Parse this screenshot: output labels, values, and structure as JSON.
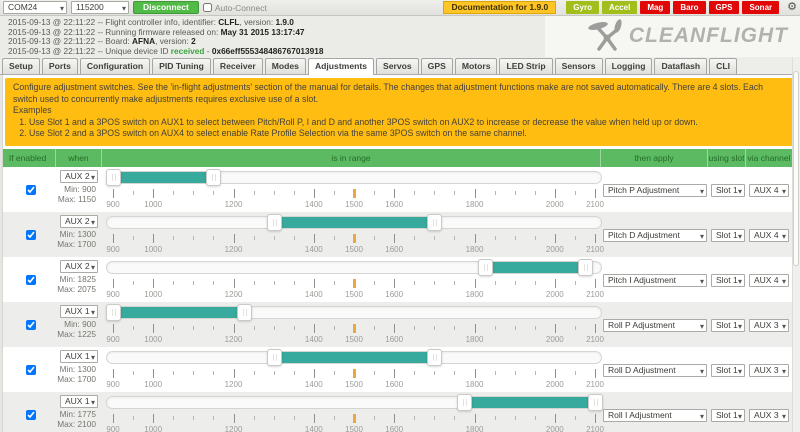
{
  "toolbar": {
    "port": "COM24",
    "baud": "115200",
    "disconnect_label": "Disconnect",
    "autoconnect_label": "Auto-Connect",
    "documentation_label": "Documentation for 1.9.0",
    "sensors": [
      {
        "label": "Gyro",
        "active": true
      },
      {
        "label": "Accel",
        "active": true
      },
      {
        "label": "Mag",
        "active": false
      },
      {
        "label": "Baro",
        "active": false
      },
      {
        "label": "GPS",
        "active": false
      },
      {
        "label": "Sonar",
        "active": false
      }
    ]
  },
  "log_lines": [
    {
      "t1": "2015-09-13 @ 22:11:22 -- Flight controller info, identifier: ",
      "b1": "CLFL",
      "t2": ", version: ",
      "b2": "1.9.0"
    },
    {
      "t1": "2015-09-13 @ 22:11:22 -- Running firmware released on: ",
      "b1": "May 31 2015 13:17:47",
      "t2": "",
      "b2": ""
    },
    {
      "t1": "2015-09-13 @ 22:11:22 -- Board: ",
      "b1": "AFNA",
      "t2": ", version: ",
      "b2": "2"
    },
    {
      "t1": "2015-09-13 @ 22:11:22 -- Unique device ID ",
      "b1": "received",
      "t2": " - ",
      "b2": "0x66eff555348486767013918"
    }
  ],
  "logo_text": "CLEANFLIGHT",
  "tabs": [
    "Setup",
    "Ports",
    "Configuration",
    "PID Tuning",
    "Receiver",
    "Modes",
    "Adjustments",
    "Servos",
    "GPS",
    "Motors",
    "LED Strip",
    "Sensors",
    "Logging",
    "Dataflash",
    "CLI"
  ],
  "active_tab": "Adjustments",
  "note": {
    "p1": "Configure adjustment switches. See the 'in-flight adjustments' section of the manual for details. The changes that adjustment functions make are not saved automatically. There are 4 slots. Each switch used to concurrently make adjustments requires exclusive use of a slot.",
    "examples_label": "Examples",
    "examples": [
      "Use Slot 1 and a 3POS switch on AUX1 to select between Pitch/Roll P, I and D and another 3POS switch on AUX2 to increase or decrease the value when held up or down.",
      "Use Slot 2 and a 3POS switch on AUX4 to select enable Rate Profile Selection via the same 3POS switch on the same channel."
    ]
  },
  "table": {
    "headers": {
      "enabled": "If enabled",
      "channel": "when channel",
      "range": "is in range",
      "apply": "then apply",
      "slot": "using slot",
      "via": "via channel"
    },
    "min_prefix": "Min:",
    "max_prefix": "Max:",
    "slider": {
      "min": 900,
      "max": 2100,
      "minor_step": 50,
      "labeled": [
        900,
        1000,
        1200,
        1400,
        1500,
        1600,
        1800,
        2000,
        2100
      ],
      "highlight": 1500
    },
    "rows": [
      {
        "enabled": true,
        "channel": "AUX 2",
        "min": 900,
        "max": 1150,
        "apply": "Pitch P Adjustment",
        "slot": "Slot 1",
        "via": "AUX 4"
      },
      {
        "enabled": true,
        "channel": "AUX 2",
        "min": 1300,
        "max": 1700,
        "apply": "Pitch D Adjustment",
        "slot": "Slot 1",
        "via": "AUX 4"
      },
      {
        "enabled": true,
        "channel": "AUX 2",
        "min": 1825,
        "max": 2075,
        "apply": "Pitch I Adjustment",
        "slot": "Slot 1",
        "via": "AUX 4"
      },
      {
        "enabled": true,
        "channel": "AUX 1",
        "min": 900,
        "max": 1225,
        "apply": "Roll P Adjustment",
        "slot": "Slot 1",
        "via": "AUX 3"
      },
      {
        "enabled": true,
        "channel": "AUX 1",
        "min": 1300,
        "max": 1700,
        "apply": "Roll D Adjustment",
        "slot": "Slot 1",
        "via": "AUX 3"
      },
      {
        "enabled": true,
        "channel": "AUX 1",
        "min": 1775,
        "max": 2100,
        "apply": "Roll I Adjustment",
        "slot": "Slot 1",
        "via": "AUX 3"
      }
    ]
  },
  "colors": {
    "slider_fill": "#38a99d",
    "table_header_green": "#5cbb62",
    "note_orange": "#ffbd12",
    "sensor_active": "#a2be1a",
    "sensor_inactive": "#e10707",
    "disconnect_green": "#52ba46",
    "doc_yellow": "#ffc425",
    "highlight_tick": "#eba93c"
  }
}
